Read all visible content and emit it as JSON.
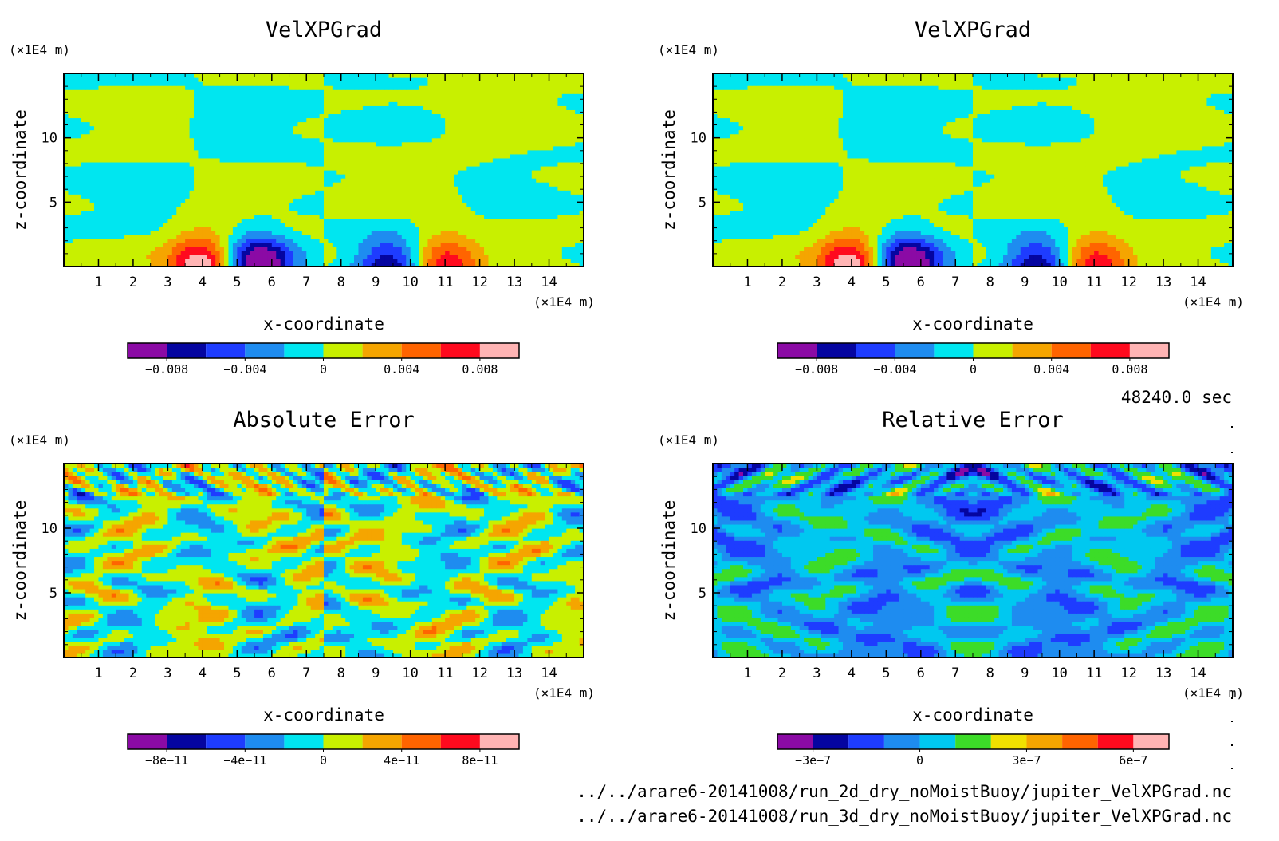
{
  "chart_data": [
    {
      "type": "heatmap",
      "title": "VelXPGrad",
      "xlabel": "x-coordinate",
      "ylabel": "z-coordinate",
      "x_unit": "(×1E4 m)",
      "y_unit": "(×1E4 m)",
      "xlim": [
        0,
        15
      ],
      "ylim": [
        0,
        15
      ],
      "x_ticks": [
        "1",
        "2",
        "3",
        "4",
        "5",
        "6",
        "7",
        "8",
        "9",
        "10",
        "11",
        "12",
        "13",
        "14"
      ],
      "y_ticks": [
        "5",
        "10"
      ],
      "colorbar": {
        "levels": [
          -0.01,
          -0.008,
          -0.006,
          -0.004,
          -0.002,
          0,
          0.002,
          0.004,
          0.006,
          0.008,
          0.01
        ],
        "colors": [
          "#8b0aa5",
          "#0505a0",
          "#1e3cff",
          "#1e8cf0",
          "#00e6f0",
          "#c8f000",
          "#f5a500",
          "#ff6400",
          "#ff0a1e",
          "#ffb4b4"
        ],
        "labels": [
          "−0.008",
          "−0.004",
          "0",
          "0.004",
          "0.008"
        ]
      },
      "features": {
        "min": -0.0095,
        "max": 0.0095,
        "symmetry": "antisymmetric"
      }
    },
    {
      "type": "heatmap",
      "title": "VelXPGrad",
      "xlabel": "x-coordinate",
      "ylabel": "z-coordinate",
      "x_unit": "(×1E4 m)",
      "y_unit": "(×1E4 m)",
      "xlim": [
        0,
        15
      ],
      "ylim": [
        0,
        15
      ],
      "x_ticks": [
        "1",
        "2",
        "3",
        "4",
        "5",
        "6",
        "7",
        "8",
        "9",
        "10",
        "11",
        "12",
        "13",
        "14"
      ],
      "y_ticks": [
        "5",
        "10"
      ],
      "colorbar": {
        "levels": [
          -0.01,
          -0.008,
          -0.006,
          -0.004,
          -0.002,
          0,
          0.002,
          0.004,
          0.006,
          0.008,
          0.01
        ],
        "colors": [
          "#8b0aa5",
          "#0505a0",
          "#1e3cff",
          "#1e8cf0",
          "#00e6f0",
          "#c8f000",
          "#f5a500",
          "#ff6400",
          "#ff0a1e",
          "#ffb4b4"
        ],
        "labels": [
          "−0.008",
          "−0.004",
          "0",
          "0.004",
          "0.008"
        ]
      },
      "features": {
        "min": -0.0095,
        "max": 0.0095,
        "symmetry": "antisymmetric"
      }
    },
    {
      "type": "heatmap",
      "title": "Absolute Error",
      "xlabel": "x-coordinate",
      "ylabel": "z-coordinate",
      "x_unit": "(×1E4 m)",
      "y_unit": "(×1E4 m)",
      "xlim": [
        0,
        15
      ],
      "ylim": [
        0,
        15
      ],
      "x_ticks": [
        "1",
        "2",
        "3",
        "4",
        "5",
        "6",
        "7",
        "8",
        "9",
        "10",
        "11",
        "12",
        "13",
        "14"
      ],
      "y_ticks": [
        "5",
        "10"
      ],
      "colorbar": {
        "levels": [
          -1e-10,
          -8e-11,
          -6e-11,
          -4e-11,
          -2e-11,
          0,
          2e-11,
          4e-11,
          6e-11,
          8e-11,
          1e-10
        ],
        "colors": [
          "#8b0aa5",
          "#0505a0",
          "#1e3cff",
          "#1e8cf0",
          "#00e6f0",
          "#c8f000",
          "#f5a500",
          "#ff6400",
          "#ff0a1e",
          "#ffb4b4"
        ],
        "labels": [
          "−8e−11",
          "−4e−11",
          "0",
          "4e−11",
          "8e−11"
        ]
      },
      "features": {
        "values_present": [
          -2e-11,
          2e-11
        ]
      }
    },
    {
      "type": "heatmap",
      "title": "Relative Error",
      "xlabel": "x-coordinate",
      "ylabel": "z-coordinate",
      "x_unit": "(×1E4 m)",
      "y_unit": "(×1E4 m)",
      "xlim": [
        0,
        15
      ],
      "ylim": [
        0,
        15
      ],
      "x_ticks": [
        "1",
        "2",
        "3",
        "4",
        "5",
        "6",
        "7",
        "8",
        "9",
        "10",
        "11",
        "12",
        "13",
        "14"
      ],
      "y_ticks": [
        "5",
        "10"
      ],
      "colorbar": {
        "levels": [
          -4e-07,
          -3e-07,
          -2e-07,
          -1e-07,
          0,
          1e-07,
          2e-07,
          3e-07,
          4e-07,
          5e-07,
          6e-07,
          7e-07
        ],
        "colors": [
          "#8b0aa5",
          "#0505a0",
          "#1e3cff",
          "#1e8cf0",
          "#00c8f0",
          "#3cdc28",
          "#f0e100",
          "#f5a500",
          "#ff6400",
          "#ff0a1e",
          "#ffb4b4"
        ],
        "labels": [
          "−3e−7",
          "0",
          "3e−7",
          "6e−7"
        ]
      },
      "features": {
        "values_present": [
          -1e-07,
          1e-07
        ]
      }
    }
  ],
  "time_label": "48240.0 sec",
  "footer": {
    "line1": "../../arare6-20141008/run_2d_dry_noMoistBuoy/jupiter_VelXPGrad.nc",
    "line2": "../../arare6-20141008/run_3d_dry_noMoistBuoy/jupiter_VelXPGrad.nc"
  }
}
